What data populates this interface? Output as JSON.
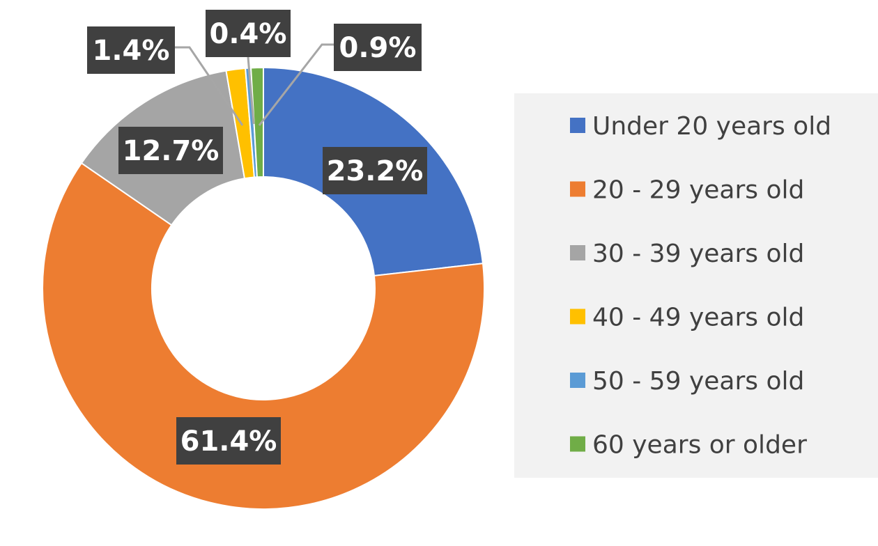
{
  "chart_data": {
    "type": "pie",
    "subtype": "donut",
    "title": "",
    "categories": [
      "Under 20 years old",
      "20 - 29 years old",
      "30 - 39 years old",
      "40 - 49 years old",
      "50 - 59 years old",
      "60 years or older"
    ],
    "values": [
      23.2,
      61.4,
      12.7,
      1.4,
      0.4,
      0.9
    ],
    "value_labels": [
      "23.2%",
      "61.4%",
      "12.7%",
      "1.4%",
      "0.4%",
      "0.9%"
    ],
    "colors": [
      "#4472C4",
      "#ED7D31",
      "#A5A5A5",
      "#FFC000",
      "#5B9BD5",
      "#70AD47"
    ],
    "label_box_color": "#404040",
    "legend_box_color": "#F2F2F2",
    "legend_position": "right"
  }
}
